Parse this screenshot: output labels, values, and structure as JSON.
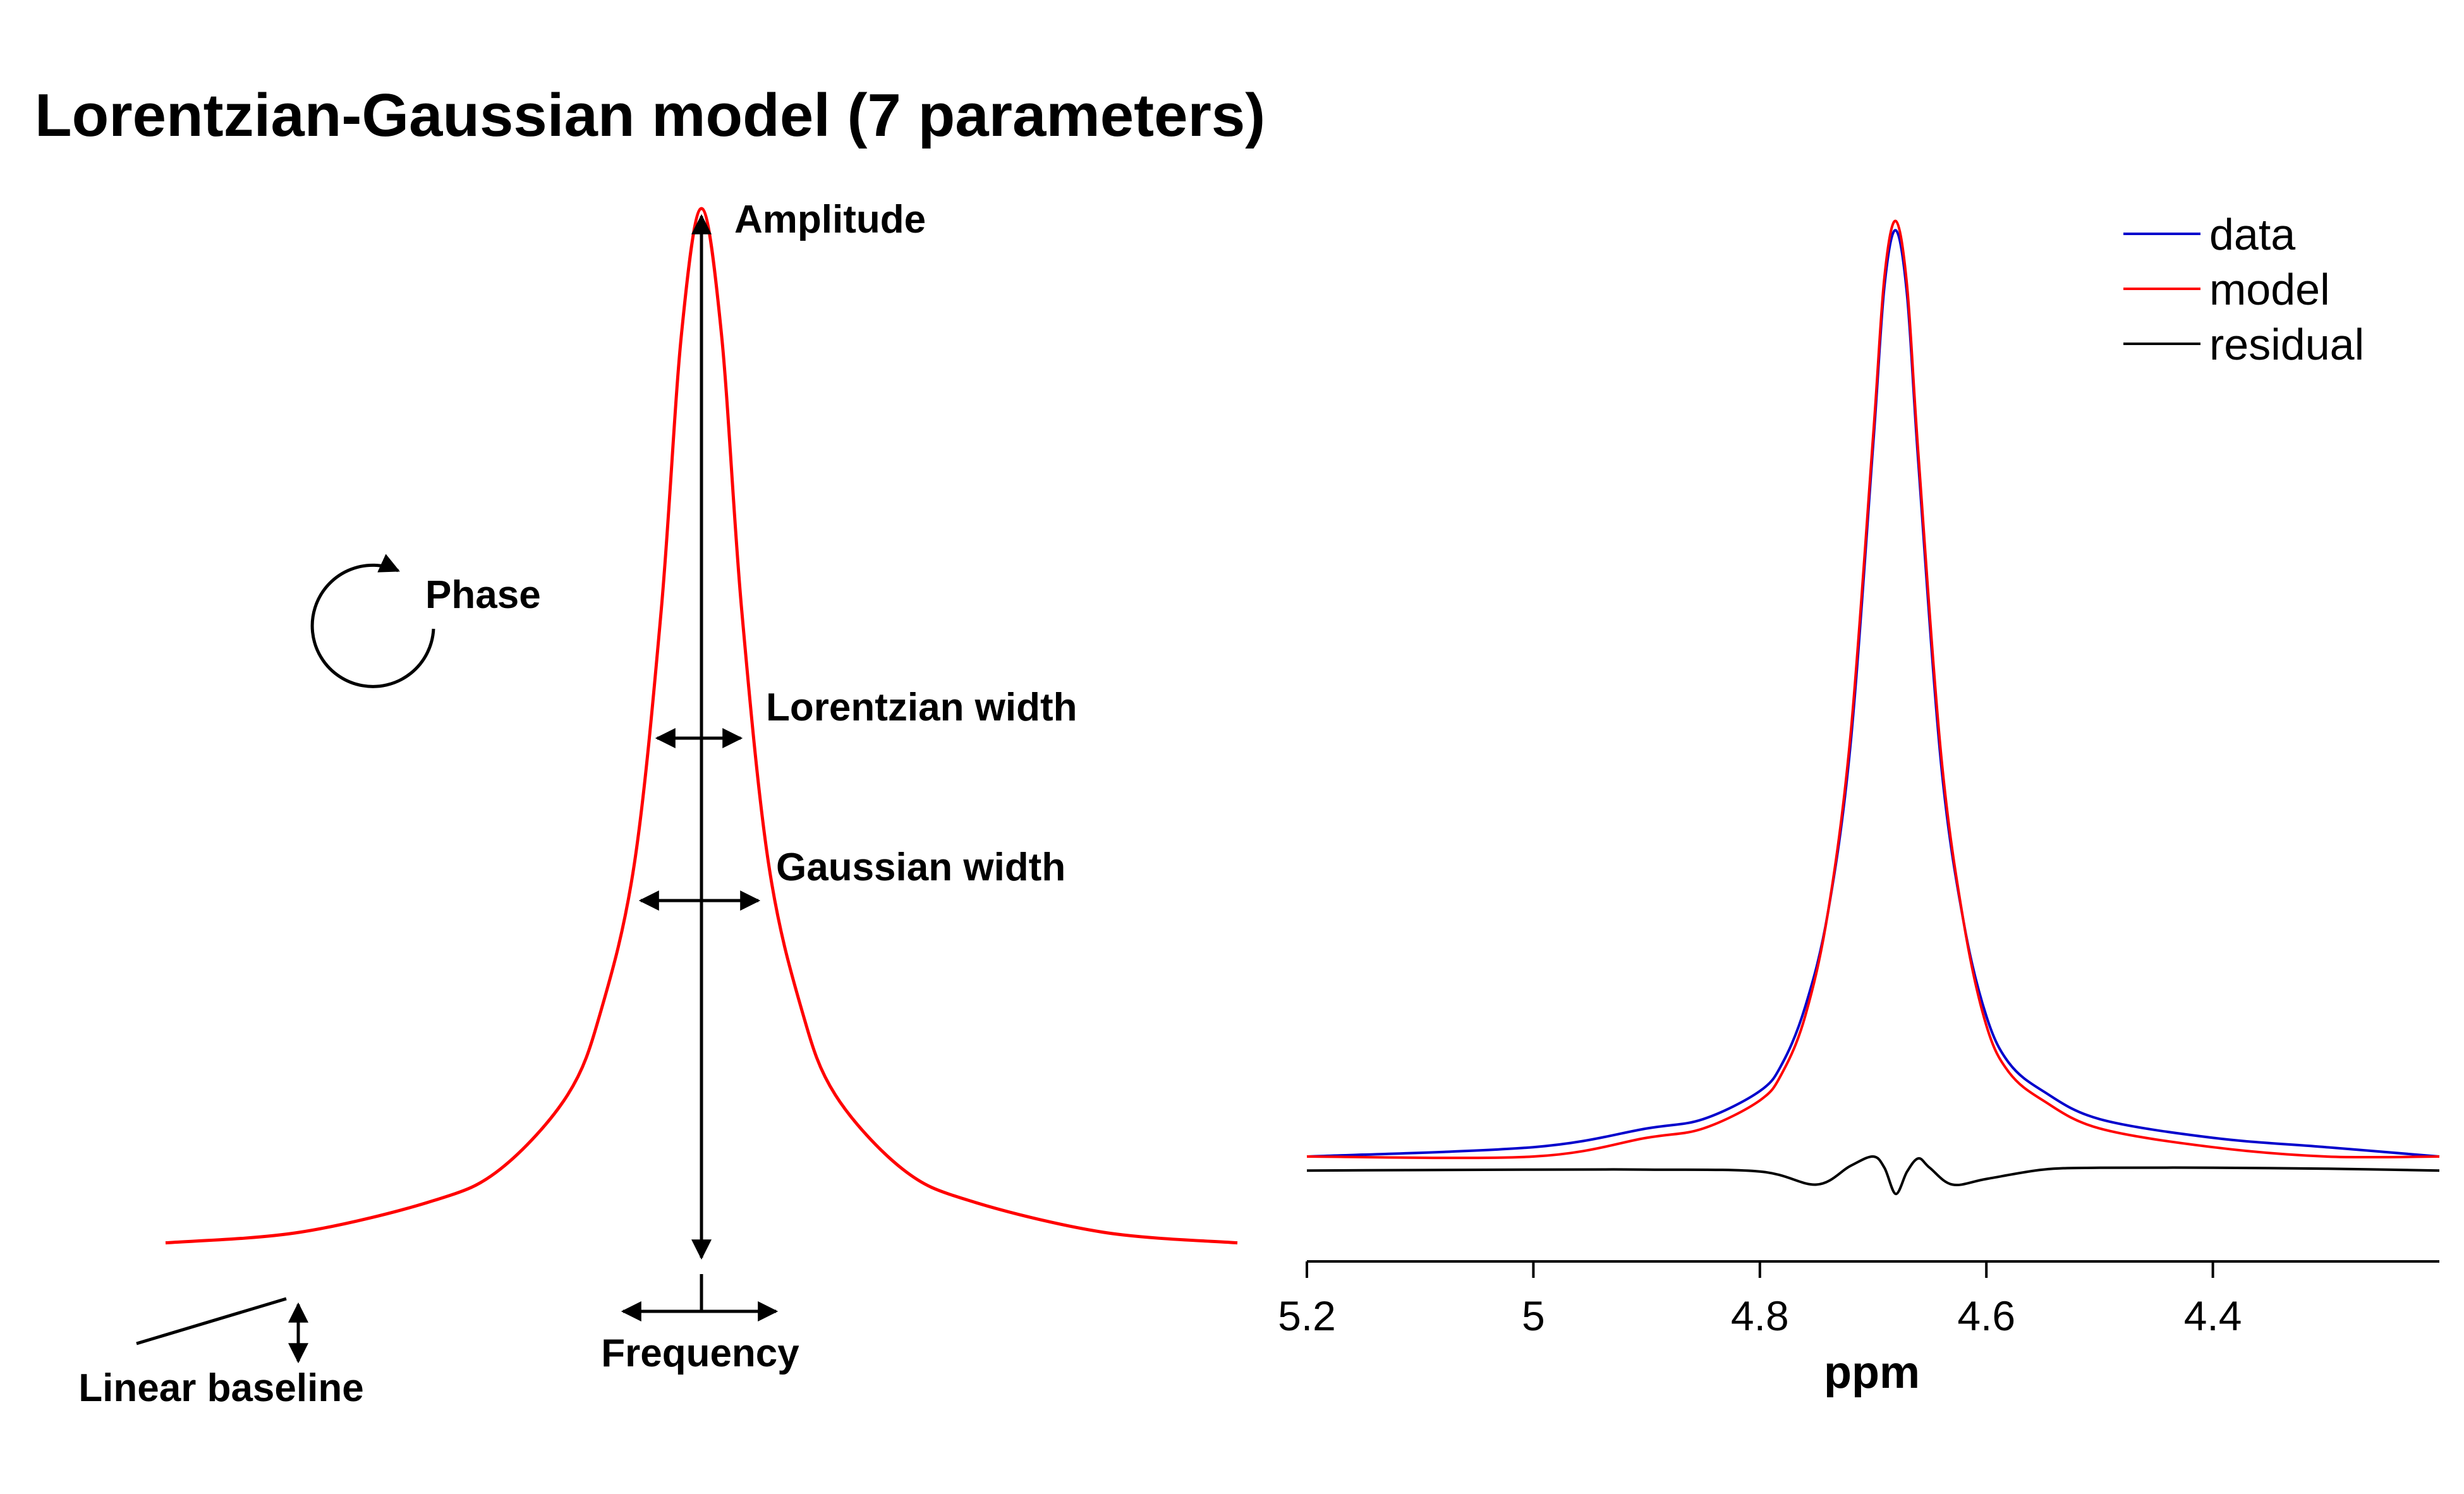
{
  "title": "Lorentzian-Gaussian model (7 parameters)",
  "annotations": {
    "amplitude": "Amplitude",
    "phase": "Phase",
    "lorentzian_width": "Lorentzian width",
    "gaussian_width": "Gaussian width",
    "frequency": "Frequency",
    "linear_baseline": "Linear baseline"
  },
  "colors": {
    "data": "#0000cc",
    "model": "#ff0000",
    "residual": "#000000"
  },
  "chart_data": [
    {
      "type": "line",
      "title": "",
      "series": [
        {
          "name": "",
          "x": [
            -8,
            -6,
            -4,
            -3,
            -2,
            -1.5,
            -1,
            -0.6,
            -0.3,
            0,
            0.3,
            0.6,
            1,
            1.5,
            2,
            3,
            4,
            6,
            8
          ],
          "y": [
            0.02,
            0.03,
            0.06,
            0.09,
            0.16,
            0.24,
            0.38,
            0.62,
            0.88,
            1.0,
            0.88,
            0.62,
            0.38,
            0.24,
            0.16,
            0.09,
            0.06,
            0.03,
            0.02
          ]
        }
      ]
    },
    {
      "type": "line",
      "xlabel": "ppm",
      "ylabel": "",
      "x_ticks": [
        "5.2",
        "5",
        "4.8",
        "4.6",
        "4.4"
      ],
      "xlim": [
        5.2,
        4.2
      ],
      "ylim": [
        -0.2,
        1.02
      ],
      "legend_position": "top-right",
      "series": [
        {
          "name": "data",
          "x": [
            5.2,
            5.0,
            4.9,
            4.85,
            4.8,
            4.78,
            4.76,
            4.74,
            4.72,
            4.7,
            4.69,
            4.68,
            4.67,
            4.66,
            4.64,
            4.62,
            4.6,
            4.58,
            4.55,
            4.5,
            4.4,
            4.3,
            4.2
          ],
          "y": [
            0.0,
            0.01,
            0.03,
            0.04,
            0.07,
            0.1,
            0.16,
            0.26,
            0.44,
            0.76,
            0.93,
            0.99,
            0.92,
            0.74,
            0.42,
            0.25,
            0.15,
            0.1,
            0.07,
            0.04,
            0.02,
            0.01,
            0.0
          ]
        },
        {
          "name": "model",
          "x": [
            5.2,
            5.0,
            4.9,
            4.85,
            4.8,
            4.78,
            4.76,
            4.74,
            4.72,
            4.7,
            4.69,
            4.68,
            4.67,
            4.66,
            4.64,
            4.62,
            4.6,
            4.58,
            4.55,
            4.5,
            4.4,
            4.3,
            4.2
          ],
          "y": [
            0.0,
            0.0,
            0.02,
            0.03,
            0.06,
            0.09,
            0.15,
            0.26,
            0.45,
            0.77,
            0.94,
            1.0,
            0.93,
            0.75,
            0.43,
            0.25,
            0.14,
            0.09,
            0.06,
            0.03,
            0.01,
            0.0,
            0.0
          ]
        },
        {
          "name": "residual",
          "x": [
            5.2,
            5.0,
            4.9,
            4.8,
            4.75,
            4.72,
            4.7,
            4.69,
            4.68,
            4.67,
            4.66,
            4.65,
            4.63,
            4.6,
            4.55,
            4.5,
            4.4,
            4.3,
            4.2
          ],
          "y": [
            -0.015,
            -0.014,
            -0.014,
            -0.016,
            -0.03,
            -0.01,
            0.0,
            -0.012,
            -0.04,
            -0.016,
            -0.002,
            -0.012,
            -0.03,
            -0.024,
            -0.014,
            -0.012,
            -0.012,
            -0.013,
            -0.015
          ]
        }
      ]
    }
  ]
}
